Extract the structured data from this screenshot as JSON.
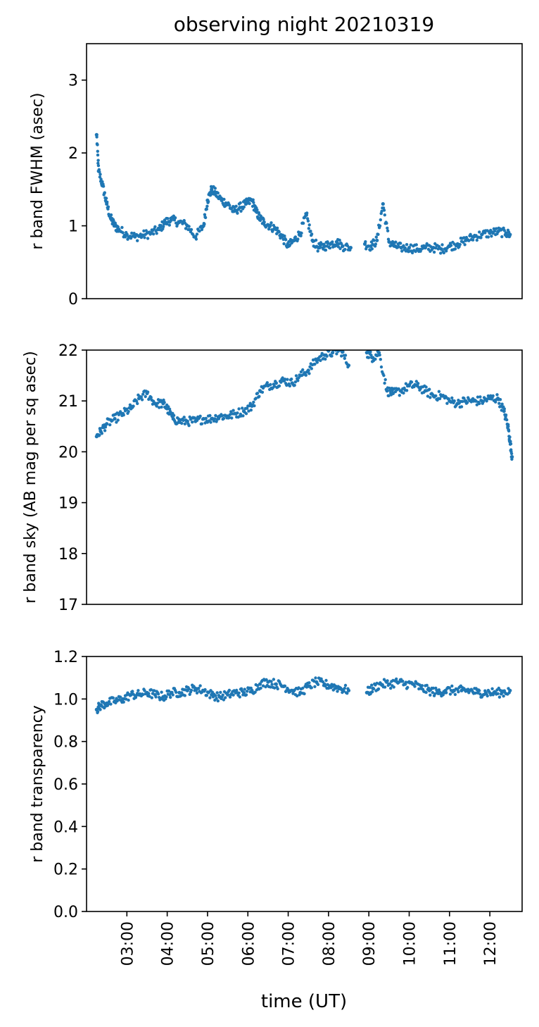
{
  "title": "observing night 20210319",
  "xlabel": "time (UT)",
  "colors": {
    "series": "#1f77b4"
  },
  "x_ticks": [
    "03:00",
    "04:00",
    "05:00",
    "06:00",
    "07:00",
    "08:00",
    "09:00",
    "10:00",
    "11:00",
    "12:00"
  ],
  "chart_data": [
    {
      "type": "scatter",
      "ylabel": "r band FWHM (asec)",
      "ylim": [
        0,
        3.5
      ],
      "yticks": [
        "0",
        "1",
        "2",
        "3"
      ],
      "ytick_values": [
        0,
        1,
        2,
        3
      ],
      "xlim_hours": [
        2.0,
        12.8
      ],
      "x_tick_hours": [
        3,
        4,
        5,
        6,
        7,
        8,
        9,
        10,
        11,
        12
      ],
      "series": [
        {
          "x_hours": [
            2.25,
            2.3,
            2.4,
            2.5,
            2.6,
            2.7,
            2.8,
            3.0,
            3.2,
            3.4,
            3.6,
            3.8,
            3.95,
            4.1,
            4.3,
            4.5,
            4.7,
            4.9,
            5.0,
            5.1,
            5.2,
            5.35,
            5.5,
            5.65,
            5.8,
            5.95,
            6.1,
            6.2,
            6.3,
            6.4,
            6.55,
            6.7,
            6.85,
            7.0,
            7.15,
            7.3,
            7.45,
            7.6,
            7.75,
            7.9,
            8.05,
            8.2,
            8.35,
            8.55,
            8.9,
            9.05,
            9.2,
            9.35,
            9.5,
            9.65,
            9.8,
            10.0,
            10.2,
            10.4,
            10.6,
            10.8,
            11.0,
            11.2,
            11.4,
            11.6,
            11.8,
            12.0,
            12.2,
            12.4,
            12.5
          ],
          "y": [
            2.25,
            1.75,
            1.55,
            1.3,
            1.1,
            1.0,
            0.95,
            0.88,
            0.85,
            0.87,
            0.9,
            0.95,
            1.05,
            1.08,
            1.05,
            1.0,
            0.85,
            1.0,
            1.35,
            1.5,
            1.45,
            1.35,
            1.3,
            1.2,
            1.25,
            1.3,
            1.35,
            1.2,
            1.1,
            1.05,
            1.0,
            0.95,
            0.85,
            0.72,
            0.8,
            0.9,
            1.15,
            0.8,
            0.7,
            0.72,
            0.75,
            0.78,
            0.72,
            0.7,
            0.75,
            0.72,
            0.8,
            1.3,
            0.78,
            0.72,
            0.7,
            0.7,
            0.68,
            0.7,
            0.7,
            0.68,
            0.72,
            0.75,
            0.8,
            0.85,
            0.88,
            0.9,
            0.92,
            0.9,
            0.88
          ]
        }
      ]
    },
    {
      "type": "scatter",
      "ylabel": "r band sky (AB mag per sq asec)",
      "ylim": [
        17,
        22
      ],
      "yticks": [
        "17",
        "18",
        "19",
        "20",
        "21",
        "22"
      ],
      "ytick_values": [
        17,
        18,
        19,
        20,
        21,
        22
      ],
      "xlim_hours": [
        2.0,
        12.8
      ],
      "x_tick_hours": [
        3,
        4,
        5,
        6,
        7,
        8,
        9,
        10,
        11,
        12
      ],
      "series": [
        {
          "x_hours": [
            2.25,
            2.35,
            2.5,
            2.7,
            2.9,
            3.1,
            3.3,
            3.5,
            3.7,
            3.9,
            4.0,
            4.15,
            4.3,
            4.5,
            4.7,
            4.9,
            5.1,
            5.3,
            5.5,
            5.7,
            5.9,
            6.1,
            6.3,
            6.5,
            6.7,
            6.9,
            7.1,
            7.3,
            7.5,
            7.7,
            7.9,
            8.1,
            8.3,
            8.5,
            8.95,
            9.1,
            9.25,
            9.45,
            9.6,
            9.8,
            10.0,
            10.2,
            10.4,
            10.6,
            10.8,
            11.0,
            11.2,
            11.4,
            11.6,
            11.8,
            12.0,
            12.2,
            12.35,
            12.45,
            12.5,
            12.55
          ],
          "y": [
            20.3,
            20.4,
            20.55,
            20.65,
            20.75,
            20.85,
            21.05,
            21.15,
            20.95,
            20.95,
            20.85,
            20.65,
            20.6,
            20.6,
            20.6,
            20.65,
            20.65,
            20.7,
            20.7,
            20.75,
            20.8,
            20.9,
            21.2,
            21.3,
            21.35,
            21.4,
            21.35,
            21.5,
            21.6,
            21.8,
            21.9,
            21.95,
            22.0,
            21.7,
            21.95,
            21.85,
            21.95,
            21.2,
            21.15,
            21.2,
            21.3,
            21.3,
            21.2,
            21.1,
            21.1,
            21.0,
            20.95,
            21.0,
            21.0,
            21.0,
            21.05,
            21.05,
            20.8,
            20.5,
            20.2,
            19.9
          ]
        }
      ]
    },
    {
      "type": "scatter",
      "ylabel": "r band transparency",
      "ylim": [
        0.0,
        1.2
      ],
      "yticks": [
        "0.0",
        "0.2",
        "0.4",
        "0.6",
        "0.8",
        "1.0",
        "1.2"
      ],
      "ytick_values": [
        0.0,
        0.2,
        0.4,
        0.6,
        0.8,
        1.0,
        1.2
      ],
      "xlim_hours": [
        2.0,
        12.8
      ],
      "x_tick_hours": [
        3,
        4,
        5,
        6,
        7,
        8,
        9,
        10,
        11,
        12
      ],
      "series": [
        {
          "x_hours": [
            2.25,
            2.35,
            2.5,
            2.7,
            2.9,
            3.1,
            3.3,
            3.5,
            3.7,
            3.9,
            4.1,
            4.3,
            4.5,
            4.7,
            4.9,
            5.1,
            5.3,
            5.5,
            5.7,
            5.9,
            6.1,
            6.3,
            6.5,
            6.7,
            6.9,
            7.1,
            7.3,
            7.5,
            7.7,
            7.9,
            8.1,
            8.3,
            8.5,
            8.95,
            9.1,
            9.3,
            9.5,
            9.7,
            9.9,
            10.1,
            10.3,
            10.5,
            10.7,
            10.9,
            11.1,
            11.3,
            11.5,
            11.7,
            11.9,
            12.1,
            12.3,
            12.5
          ],
          "y": [
            0.95,
            0.97,
            0.98,
            0.99,
            1.0,
            1.02,
            1.02,
            1.03,
            1.02,
            1.01,
            1.03,
            1.03,
            1.04,
            1.05,
            1.04,
            1.02,
            1.01,
            1.02,
            1.03,
            1.03,
            1.04,
            1.07,
            1.08,
            1.07,
            1.06,
            1.04,
            1.03,
            1.06,
            1.08,
            1.07,
            1.06,
            1.05,
            1.04,
            1.03,
            1.05,
            1.07,
            1.07,
            1.08,
            1.07,
            1.07,
            1.05,
            1.04,
            1.03,
            1.04,
            1.04,
            1.04,
            1.04,
            1.03,
            1.03,
            1.03,
            1.03,
            1.04
          ]
        }
      ]
    }
  ]
}
